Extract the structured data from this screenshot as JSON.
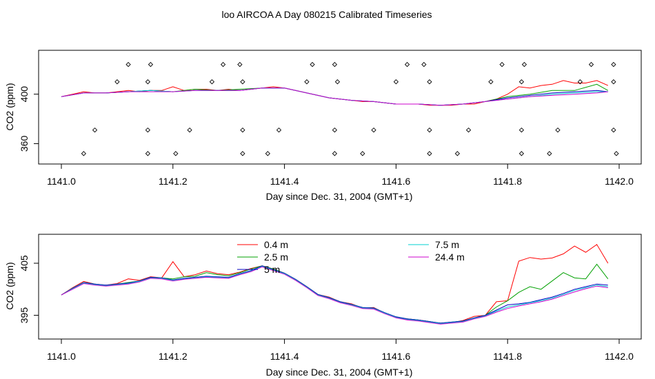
{
  "title": "loo AIRCOA A  Day 080215  Calibrated Timeseries",
  "chart_data": [
    {
      "type": "scatter",
      "xlabel": "Day since Dec. 31, 2004 (GMT+1)",
      "ylabel": "CO2 (ppm)",
      "xlim": [
        1141.0,
        1142.0
      ],
      "ylim": [
        348,
        431
      ],
      "xticks": [
        "1141.0",
        "1141.2",
        "1141.4",
        "1141.6",
        "1141.8",
        "1142.0"
      ],
      "yticks": [
        "360",
        "400"
      ],
      "series": [
        {
          "name": "0.4 m",
          "color": "#ff0000",
          "x": [
            1141.0,
            1141.02,
            1141.04,
            1141.06,
            1141.08,
            1141.1,
            1141.12,
            1141.14,
            1141.16,
            1141.18,
            1141.2,
            1141.22,
            1141.24,
            1141.26,
            1141.28,
            1141.3,
            1141.32,
            1141.34,
            1141.36,
            1141.38,
            1141.4,
            1141.42,
            1141.44,
            1141.46,
            1141.48,
            1141.5,
            1141.52,
            1141.54,
            1141.56,
            1141.58,
            1141.6,
            1141.62,
            1141.64,
            1141.66,
            1141.68,
            1141.7,
            1141.72,
            1141.74,
            1141.76,
            1141.78,
            1141.8,
            1141.82,
            1141.84,
            1141.86,
            1141.88,
            1141.9,
            1141.92,
            1141.94,
            1141.96,
            1141.98
          ],
          "y": [
            398,
            400,
            402,
            401,
            401,
            402,
            403,
            402,
            403,
            403,
            406,
            403,
            404,
            404,
            403,
            404,
            403,
            404,
            405,
            406,
            405,
            403,
            401,
            399,
            397,
            396,
            395,
            394,
            394,
            393,
            392,
            392,
            392,
            391,
            391,
            391,
            392,
            392,
            394,
            396,
            400,
            406,
            405,
            407,
            408,
            411,
            409,
            409,
            411,
            407
          ]
        },
        {
          "name": "2.5 m",
          "color": "#00a000",
          "x": [
            1141.0,
            1141.04,
            1141.08,
            1141.12,
            1141.16,
            1141.2,
            1141.24,
            1141.28,
            1141.32,
            1141.36,
            1141.4,
            1141.44,
            1141.48,
            1141.52,
            1141.56,
            1141.6,
            1141.64,
            1141.68,
            1141.72,
            1141.76,
            1141.8,
            1141.84,
            1141.88,
            1141.92,
            1141.96,
            1141.98
          ],
          "y": [
            398,
            401,
            401,
            402,
            403,
            402,
            404,
            403,
            404,
            405,
            405,
            401,
            397,
            395,
            394,
            392,
            392,
            391,
            392,
            394,
            398,
            400,
            403,
            403,
            408,
            403
          ]
        },
        {
          "name": "5 m",
          "color": "#0000c0",
          "x": [
            1141.0,
            1141.04,
            1141.08,
            1141.12,
            1141.16,
            1141.2,
            1141.24,
            1141.28,
            1141.32,
            1141.36,
            1141.4,
            1141.44,
            1141.48,
            1141.52,
            1141.56,
            1141.6,
            1141.64,
            1141.68,
            1141.72,
            1141.76,
            1141.8,
            1141.84,
            1141.88,
            1141.92,
            1141.96,
            1141.98
          ],
          "y": [
            398,
            401,
            401,
            402,
            403,
            402,
            403,
            403,
            403,
            405,
            405,
            401,
            397,
            395,
            394,
            392,
            392,
            391,
            392,
            394,
            397,
            399,
            401,
            402,
            403,
            402
          ]
        },
        {
          "name": "7.5 m",
          "color": "#00d0d0",
          "x": [
            1141.0,
            1141.04,
            1141.08,
            1141.12,
            1141.16,
            1141.2,
            1141.24,
            1141.28,
            1141.32,
            1141.36,
            1141.4,
            1141.44,
            1141.48,
            1141.52,
            1141.56,
            1141.6,
            1141.64,
            1141.68,
            1141.72,
            1141.76,
            1141.8,
            1141.84,
            1141.88,
            1141.92,
            1141.96,
            1141.98
          ],
          "y": [
            398,
            401,
            401,
            402,
            403,
            402,
            403,
            403,
            403,
            405,
            405,
            401,
            397,
            395,
            394,
            392,
            392,
            391,
            392,
            394,
            396,
            398,
            400,
            401,
            402,
            402
          ]
        },
        {
          "name": "24.4 m",
          "color": "#cc00cc",
          "x": [
            1141.0,
            1141.04,
            1141.08,
            1141.12,
            1141.16,
            1141.2,
            1141.24,
            1141.28,
            1141.32,
            1141.36,
            1141.4,
            1141.44,
            1141.48,
            1141.52,
            1141.56,
            1141.6,
            1141.64,
            1141.68,
            1141.72,
            1141.76,
            1141.8,
            1141.84,
            1141.88,
            1141.92,
            1141.96,
            1141.98
          ],
          "y": [
            398,
            401,
            401,
            402,
            402,
            402,
            403,
            403,
            403,
            405,
            405,
            401,
            397,
            395,
            394,
            392,
            392,
            391,
            392,
            394,
            396,
            398,
            399,
            400,
            401,
            402
          ]
        }
      ],
      "markers": {
        "x": [
          1141.12,
          1141.16,
          1141.29,
          1141.32,
          1141.45,
          1141.49,
          1141.62,
          1141.65,
          1141.79,
          1141.83,
          1141.95,
          1141.99,
          1141.1,
          1141.155,
          1141.27,
          1141.325,
          1141.44,
          1141.495,
          1141.6,
          1141.66,
          1141.77,
          1141.825,
          1141.93,
          1141.99,
          1141.06,
          1141.155,
          1141.23,
          1141.325,
          1141.39,
          1141.49,
          1141.56,
          1141.66,
          1141.73,
          1141.825,
          1141.89,
          1141.99,
          1141.04,
          1141.155,
          1141.205,
          1141.325,
          1141.37,
          1141.49,
          1141.54,
          1141.66,
          1141.71,
          1141.825,
          1141.875,
          1141.995
        ],
        "y": [
          424,
          424,
          424,
          424,
          424,
          424,
          424,
          424,
          424,
          424,
          424,
          424,
          410,
          410,
          410,
          410,
          410,
          410,
          410,
          410,
          410,
          410,
          410,
          410,
          371,
          371,
          371,
          371,
          371,
          371,
          371,
          371,
          371,
          371,
          371,
          371,
          352,
          352,
          352,
          352,
          352,
          352,
          352,
          352,
          352,
          352,
          352,
          352
        ]
      }
    },
    {
      "type": "line",
      "xlabel": "Day since Dec. 31, 2004 (GMT+1)",
      "ylabel": "CO2 (ppm)",
      "xlim": [
        1141.0,
        1142.0
      ],
      "ylim": [
        391.5,
        409.5
      ],
      "xticks": [
        "1141.0",
        "1141.2",
        "1141.4",
        "1141.6",
        "1141.8",
        "1142.0"
      ],
      "yticks": [
        "395",
        "405"
      ],
      "legend": "top-center",
      "x": [
        1141.0,
        1141.02,
        1141.04,
        1141.06,
        1141.08,
        1141.1,
        1141.12,
        1141.14,
        1141.16,
        1141.18,
        1141.2,
        1141.22,
        1141.24,
        1141.26,
        1141.28,
        1141.3,
        1141.32,
        1141.34,
        1141.36,
        1141.38,
        1141.4,
        1141.42,
        1141.44,
        1141.46,
        1141.48,
        1141.5,
        1141.52,
        1141.54,
        1141.56,
        1141.58,
        1141.6,
        1141.62,
        1141.64,
        1141.66,
        1141.68,
        1141.7,
        1141.72,
        1141.74,
        1141.76,
        1141.78,
        1141.8,
        1141.82,
        1141.84,
        1141.86,
        1141.88,
        1141.9,
        1141.92,
        1141.94,
        1141.96,
        1141.98
      ],
      "series": [
        {
          "name": "0.4 m",
          "color": "#ff0000",
          "y": [
            398.9,
            400.3,
            401.5,
            401.0,
            400.8,
            401.1,
            402.0,
            401.7,
            402.4,
            402.2,
            405.3,
            402.4,
            402.8,
            403.5,
            403.0,
            402.8,
            403.3,
            404.0,
            404.5,
            403.9,
            403.1,
            401.9,
            400.5,
            399.0,
            398.5,
            397.6,
            397.2,
            396.4,
            396.5,
            395.4,
            394.6,
            394.3,
            394.1,
            393.8,
            393.4,
            393.6,
            394.0,
            394.8,
            395.0,
            397.6,
            397.8,
            405.4,
            406.1,
            405.8,
            406.0,
            406.8,
            408.3,
            407.1,
            408.6,
            405.0
          ]
        },
        {
          "name": "2.5 m",
          "color": "#00a000",
          "y": [
            398.9,
            400.2,
            401.3,
            401.0,
            400.7,
            401.0,
            401.3,
            401.6,
            402.3,
            402.2,
            402.0,
            402.4,
            402.5,
            403.2,
            402.8,
            402.6,
            403.2,
            403.9,
            404.5,
            403.9,
            403.1,
            401.9,
            400.5,
            399.0,
            398.4,
            397.6,
            397.1,
            396.5,
            396.4,
            395.5,
            394.7,
            394.3,
            394.1,
            393.8,
            393.5,
            393.7,
            393.9,
            394.5,
            395.0,
            396.6,
            397.8,
            399.4,
            400.5,
            400.0,
            401.6,
            403.2,
            402.2,
            402.0,
            404.8,
            402.0
          ]
        },
        {
          "name": "5 m",
          "color": "#0000c0",
          "y": [
            398.9,
            400.2,
            401.3,
            401.0,
            400.8,
            401.0,
            401.2,
            401.6,
            402.3,
            402.2,
            401.8,
            402.1,
            402.3,
            402.5,
            402.4,
            402.3,
            403.0,
            403.6,
            404.5,
            403.8,
            403.1,
            401.9,
            400.5,
            399.0,
            398.4,
            397.6,
            397.1,
            396.5,
            396.4,
            395.5,
            394.7,
            394.3,
            394.1,
            393.8,
            393.5,
            393.7,
            393.9,
            394.5,
            395.0,
            396.0,
            397.0,
            397.2,
            397.5,
            398.0,
            398.5,
            399.2,
            400.0,
            400.5,
            401.0,
            400.8
          ]
        },
        {
          "name": "7.5 m",
          "color": "#00d0d0",
          "y": [
            398.9,
            400.1,
            401.2,
            400.9,
            400.7,
            400.9,
            401.1,
            401.5,
            402.2,
            402.1,
            401.7,
            402.0,
            402.2,
            402.4,
            402.3,
            402.2,
            402.9,
            403.5,
            404.4,
            403.7,
            403.0,
            401.8,
            400.4,
            398.9,
            398.3,
            397.5,
            397.0,
            396.4,
            396.3,
            395.4,
            394.6,
            394.2,
            394.0,
            393.7,
            393.4,
            393.6,
            393.8,
            394.4,
            394.9,
            395.8,
            396.6,
            397.0,
            397.4,
            397.8,
            398.3,
            399.0,
            399.8,
            400.3,
            400.8,
            400.5
          ]
        },
        {
          "name": "24.4 m",
          "color": "#cc00cc",
          "y": [
            398.9,
            400.0,
            401.1,
            400.8,
            400.6,
            400.8,
            401.0,
            401.4,
            402.1,
            402.0,
            401.6,
            401.9,
            402.1,
            402.3,
            402.2,
            402.1,
            402.8,
            403.4,
            404.3,
            403.6,
            402.9,
            401.7,
            400.3,
            398.8,
            398.2,
            397.4,
            396.9,
            396.3,
            396.2,
            395.3,
            394.5,
            394.1,
            393.9,
            393.6,
            393.3,
            393.5,
            393.7,
            394.3,
            394.8,
            395.6,
            396.3,
            396.8,
            397.2,
            397.6,
            398.1,
            398.8,
            399.5,
            400.1,
            400.6,
            400.3
          ]
        }
      ]
    }
  ]
}
